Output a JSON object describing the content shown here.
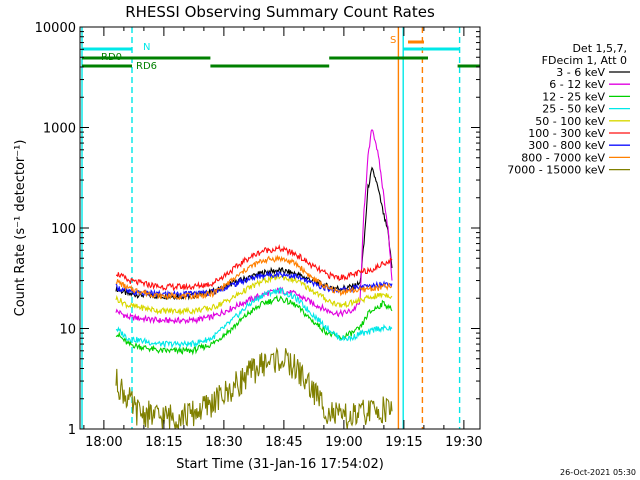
{
  "chart_data": {
    "type": "line",
    "title": "RHESSI Observing Summary Count Rates",
    "xlabel": "Start Time (31-Jan-16 17:54:02)",
    "ylabel": "Count Rate (s⁻¹ detector⁻¹)",
    "yscale": "log",
    "ylim": [
      1,
      10000
    ],
    "xlim_minutes_after_1754": [
      0,
      100
    ],
    "x_ticks": [
      {
        "label": "18:00",
        "t": 5.97
      },
      {
        "label": "18:15",
        "t": 20.97
      },
      {
        "label": "18:30",
        "t": 35.97
      },
      {
        "label": "18:45",
        "t": 50.97
      },
      {
        "label": "19:00",
        "t": 65.97
      },
      {
        "label": "19:15",
        "t": 80.97
      },
      {
        "label": "19:30",
        "t": 95.97
      }
    ],
    "y_ticks": [
      {
        "label": "1",
        "v": 1
      },
      {
        "label": "10",
        "v": 10
      },
      {
        "label": "100",
        "v": 100
      },
      {
        "label": "1000",
        "v": 1000
      },
      {
        "label": "10000",
        "v": 10000
      }
    ],
    "legend_header": [
      "Det 1,5,7,",
      "FDecim 1, Att 0"
    ],
    "legend_position": "right-outside",
    "series": [
      {
        "name": "3 - 6 keV",
        "color": "#000000",
        "points": [
          [
            9,
            25
          ],
          [
            12,
            22
          ],
          [
            20,
            21
          ],
          [
            28,
            21
          ],
          [
            33,
            23
          ],
          [
            38,
            28
          ],
          [
            42,
            32
          ],
          [
            46,
            36
          ],
          [
            50,
            38
          ],
          [
            54,
            35
          ],
          [
            58,
            30
          ],
          [
            62,
            26
          ],
          [
            65,
            25
          ],
          [
            68,
            26
          ],
          [
            70,
            28
          ],
          [
            71,
            70
          ],
          [
            72,
            250
          ],
          [
            73,
            380
          ],
          [
            74,
            300
          ],
          [
            75,
            200
          ],
          [
            76,
            130
          ],
          [
            77,
            90
          ],
          [
            78,
            40
          ]
        ]
      },
      {
        "name": "6 - 12 keV",
        "color": "#e000e0",
        "points": [
          [
            9,
            15
          ],
          [
            12,
            13
          ],
          [
            20,
            12
          ],
          [
            28,
            12
          ],
          [
            33,
            13
          ],
          [
            38,
            16
          ],
          [
            42,
            19
          ],
          [
            46,
            22
          ],
          [
            50,
            24
          ],
          [
            54,
            22
          ],
          [
            58,
            18
          ],
          [
            62,
            15
          ],
          [
            65,
            14
          ],
          [
            68,
            15
          ],
          [
            70,
            18
          ],
          [
            71,
            150
          ],
          [
            72,
            500
          ],
          [
            73,
            1000
          ],
          [
            74,
            700
          ],
          [
            75,
            400
          ],
          [
            76,
            200
          ],
          [
            77,
            100
          ],
          [
            78,
            30
          ]
        ]
      },
      {
        "name": "12 - 25 keV",
        "color": "#00d000",
        "points": [
          [
            9,
            9
          ],
          [
            12,
            7
          ],
          [
            20,
            6
          ],
          [
            28,
            6
          ],
          [
            33,
            7
          ],
          [
            38,
            10
          ],
          [
            42,
            14
          ],
          [
            46,
            18
          ],
          [
            50,
            20
          ],
          [
            54,
            17
          ],
          [
            58,
            12
          ],
          [
            62,
            9
          ],
          [
            65,
            8
          ],
          [
            68,
            9
          ],
          [
            70,
            10
          ],
          [
            72,
            14
          ],
          [
            74,
            16
          ],
          [
            76,
            18
          ],
          [
            78,
            15
          ]
        ]
      },
      {
        "name": "25 - 50 keV",
        "color": "#00e8e8",
        "points": [
          [
            9,
            10
          ],
          [
            12,
            8
          ],
          [
            20,
            7
          ],
          [
            28,
            7
          ],
          [
            33,
            8
          ],
          [
            38,
            12
          ],
          [
            42,
            17
          ],
          [
            46,
            22
          ],
          [
            50,
            24
          ],
          [
            54,
            20
          ],
          [
            58,
            14
          ],
          [
            62,
            10
          ],
          [
            65,
            8
          ],
          [
            68,
            8
          ],
          [
            70,
            9
          ],
          [
            72,
            9
          ],
          [
            74,
            10
          ],
          [
            76,
            10
          ],
          [
            78,
            10
          ]
        ]
      },
      {
        "name": "50 - 100 keV",
        "color": "#d8d800",
        "points": [
          [
            9,
            20
          ],
          [
            12,
            17
          ],
          [
            20,
            15
          ],
          [
            28,
            15
          ],
          [
            33,
            16
          ],
          [
            38,
            20
          ],
          [
            42,
            25
          ],
          [
            46,
            30
          ],
          [
            50,
            33
          ],
          [
            54,
            30
          ],
          [
            58,
            24
          ],
          [
            62,
            19
          ],
          [
            65,
            17
          ],
          [
            68,
            18
          ],
          [
            70,
            19
          ],
          [
            72,
            20
          ],
          [
            74,
            21
          ],
          [
            76,
            22
          ],
          [
            78,
            21
          ]
        ]
      },
      {
        "name": "100 - 300 keV",
        "color": "#ff1010",
        "points": [
          [
            9,
            36
          ],
          [
            12,
            30
          ],
          [
            20,
            26
          ],
          [
            28,
            26
          ],
          [
            33,
            28
          ],
          [
            38,
            38
          ],
          [
            42,
            50
          ],
          [
            46,
            60
          ],
          [
            50,
            62
          ],
          [
            54,
            55
          ],
          [
            58,
            42
          ],
          [
            62,
            34
          ],
          [
            65,
            32
          ],
          [
            68,
            34
          ],
          [
            70,
            36
          ],
          [
            72,
            38
          ],
          [
            74,
            40
          ],
          [
            76,
            45
          ],
          [
            78,
            48
          ]
        ]
      },
      {
        "name": "300 - 800 keV",
        "color": "#1010ff",
        "points": [
          [
            9,
            26
          ],
          [
            12,
            23
          ],
          [
            20,
            22
          ],
          [
            28,
            22
          ],
          [
            33,
            23
          ],
          [
            38,
            27
          ],
          [
            42,
            31
          ],
          [
            46,
            34
          ],
          [
            50,
            35
          ],
          [
            54,
            33
          ],
          [
            58,
            28
          ],
          [
            62,
            25
          ],
          [
            65,
            24
          ],
          [
            68,
            25
          ],
          [
            70,
            26
          ],
          [
            72,
            26
          ],
          [
            74,
            27
          ],
          [
            76,
            28
          ],
          [
            78,
            28
          ]
        ]
      },
      {
        "name": "800 - 7000 keV",
        "color": "#ff8000",
        "points": [
          [
            9,
            30
          ],
          [
            12,
            25
          ],
          [
            20,
            21
          ],
          [
            28,
            21
          ],
          [
            33,
            22
          ],
          [
            38,
            30
          ],
          [
            42,
            40
          ],
          [
            46,
            48
          ],
          [
            50,
            50
          ],
          [
            54,
            44
          ],
          [
            58,
            32
          ],
          [
            62,
            25
          ],
          [
            65,
            23
          ],
          [
            68,
            24
          ],
          [
            70,
            24
          ],
          [
            72,
            25
          ],
          [
            74,
            25
          ],
          [
            76,
            26
          ],
          [
            78,
            26
          ]
        ]
      },
      {
        "name": "7000 - 15000 keV",
        "color": "#808000",
        "points": [
          [
            9,
            3
          ],
          [
            12,
            2
          ],
          [
            14,
            1.5
          ],
          [
            20,
            1.3
          ],
          [
            28,
            1.4
          ],
          [
            33,
            1.8
          ],
          [
            38,
            2.5
          ],
          [
            42,
            3.5
          ],
          [
            46,
            4.5
          ],
          [
            50,
            5
          ],
          [
            54,
            4
          ],
          [
            58,
            2.5
          ],
          [
            62,
            1.5
          ],
          [
            65,
            1.3
          ],
          [
            68,
            1.3
          ],
          [
            70,
            1.4
          ],
          [
            72,
            1.5
          ],
          [
            74,
            1.5
          ],
          [
            76,
            1.6
          ],
          [
            78,
            1.5
          ]
        ]
      }
    ],
    "annotations": {
      "markers": [
        {
          "label": "N",
          "color": "#00e8e8"
        },
        {
          "label": "RD0",
          "color": "#008000"
        },
        {
          "label": "RD6",
          "color": "#008000"
        },
        {
          "label": "S",
          "color": "#ff8000"
        }
      ],
      "vertical_lines": [
        {
          "t": 0.5,
          "color": "#00e8e8",
          "dashed": false
        },
        {
          "t": 13,
          "color": "#00e8e8",
          "dashed": true
        },
        {
          "t": 79.6,
          "color": "#ff8000",
          "dashed": false
        },
        {
          "t": 80.8,
          "color": "#00e8e8",
          "dashed": false
        },
        {
          "t": 85.6,
          "color": "#ff8000",
          "dashed": true
        },
        {
          "t": 94.9,
          "color": "#00e8e8",
          "dashed": true
        }
      ],
      "segments": [
        {
          "t0": 0.5,
          "t1": 13,
          "color": "#00e8e8",
          "level": "upper"
        },
        {
          "t0": 80.8,
          "t1": 94.9,
          "color": "#00e8e8",
          "level": "upper"
        },
        {
          "t0": 82,
          "t1": 86,
          "color": "#ff8000",
          "level": "top"
        },
        {
          "t0": 0.5,
          "t1": 13,
          "color": "#008000",
          "level": "mid"
        },
        {
          "t0": 13,
          "t1": 32.6,
          "color": "#008000",
          "level": "mid"
        },
        {
          "t0": 62.3,
          "t1": 87,
          "color": "#008000",
          "level": "mid"
        },
        {
          "t0": 0.5,
          "t1": 13,
          "color": "#008000",
          "level": "low"
        },
        {
          "t0": 32.6,
          "t1": 62.3,
          "color": "#008000",
          "level": "low"
        },
        {
          "t0": 94.4,
          "t1": 100,
          "color": "#008000",
          "level": "low"
        }
      ]
    },
    "timestamp": "26-Oct-2021 05:30"
  }
}
